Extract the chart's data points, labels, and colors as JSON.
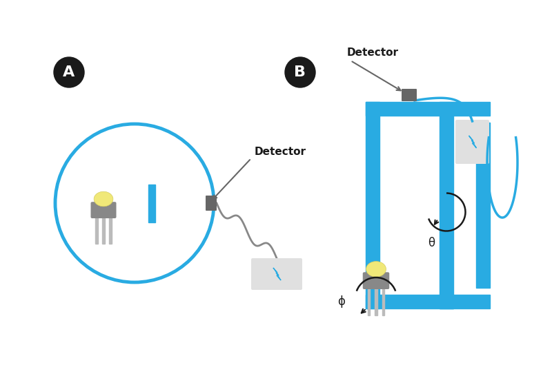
{
  "bg_color": "#ffffff",
  "teal_color": "#29abe2",
  "dark_color": "#1a1a1a",
  "gray_color": "#888888",
  "gray_dark": "#666666",
  "light_gray": "#e0e0e0",
  "led_body": "#888888",
  "led_leg": "#bbbbbb",
  "yellow_color": "#f0e878",
  "label_A": "A",
  "label_B": "B",
  "detector_label": "Detector",
  "theta_label": "θ",
  "phi_label": "ϕ",
  "figw": 8.0,
  "figh": 5.33
}
